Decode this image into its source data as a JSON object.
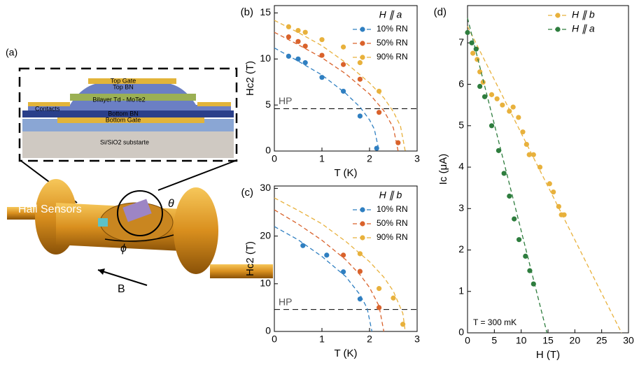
{
  "illustration": {
    "panel": "(a)",
    "top_gate": "Top Gate",
    "top_bn": "Top BN",
    "bilayer": "Bilayer Td - MoTe2",
    "contacts": "Contacts",
    "bottom_bn": "Bottom BN",
    "bottom_gate": "Bottom Gate",
    "substrate": "Si/SiO2 substarte",
    "hall": "Hall Sensors",
    "theta": "θ",
    "phi": "ϕ",
    "field": "B"
  },
  "chart_data": [
    {
      "type": "scatter",
      "panel": "(b)",
      "legend_title": "H ∥ a",
      "xlabel": "T (K)",
      "ylabel": "Hc2 (T)",
      "xlim": [
        0,
        3
      ],
      "ylim": [
        0,
        15.8
      ],
      "xticks": [
        0,
        1,
        2,
        3
      ],
      "yticks": [
        0,
        5,
        10,
        15
      ],
      "legend": "upper right",
      "hline": {
        "value": 4.6,
        "label": "HP"
      },
      "series": [
        {
          "name": "10% RN",
          "color": "#2f7fc1",
          "x": [
            0.3,
            0.5,
            0.65,
            1.0,
            1.45,
            1.8,
            2.15
          ],
          "values": [
            10.3,
            10.0,
            9.6,
            8.0,
            6.5,
            3.8,
            0.3
          ],
          "fit": {
            "x": [
              0,
              0.5,
              1.0,
              1.5,
              1.8,
              2.0,
              2.1,
              2.2
            ],
            "values": [
              11.2,
              9.77,
              8.26,
              6.26,
              4.78,
              3.38,
              2.39,
              0
            ]
          }
        },
        {
          "name": "50% RN",
          "color": "#d9622b",
          "x": [
            0.3,
            0.5,
            0.65,
            1.0,
            1.45,
            1.8,
            2.2,
            2.6
          ],
          "values": [
            12.4,
            11.9,
            11.4,
            10.4,
            9.4,
            7.8,
            4.2,
            0.9
          ],
          "fit": {
            "x": [
              0,
              0.5,
              1.0,
              1.5,
              2.0,
              2.3,
              2.5,
              2.6
            ],
            "values": [
              12.9,
              11.56,
              10.13,
              8.39,
              6.19,
              4.38,
              2.53,
              0
            ]
          }
        },
        {
          "name": "90% RN",
          "color": "#e8b13c",
          "x": [
            0.3,
            0.5,
            0.65,
            1.0,
            1.45,
            1.8,
            2.2
          ],
          "values": [
            13.5,
            13.1,
            12.9,
            12.1,
            11.3,
            9.6,
            6.5
          ],
          "fit": {
            "x": [
              0,
              0.5,
              1.0,
              1.5,
              2.0,
              2.3,
              2.5,
              2.65,
              2.75
            ],
            "values": [
              14.2,
              12.88,
              11.44,
              9.6,
              7.4,
              5.78,
              4.28,
              2.71,
              0
            ]
          }
        }
      ]
    },
    {
      "type": "scatter",
      "panel": "(c)",
      "legend_title": "H ∥ b",
      "xlabel": "T (K)",
      "ylabel": "Hc2 (T)",
      "xlim": [
        0,
        3
      ],
      "ylim": [
        0,
        30.5
      ],
      "xticks": [
        0,
        1,
        2,
        3
      ],
      "yticks": [
        0,
        10,
        20,
        30
      ],
      "legend": "upper right",
      "hline": {
        "value": 4.6,
        "label": "HP"
      },
      "series": [
        {
          "name": "10% RN",
          "color": "#2f7fc1",
          "x": [
            0.6,
            1.1,
            1.45,
            1.8
          ],
          "values": [
            18,
            16,
            12.5,
            6.8
          ],
          "fit": {
            "x": [
              0,
              0.5,
              1.0,
              1.5,
              1.8,
              1.95,
              2.05
            ],
            "values": [
              22,
              19.21,
              15.72,
              11.51,
              7.7,
              4.86,
              0
            ]
          }
        },
        {
          "name": "50% RN",
          "color": "#d9622b",
          "x": [
            1.45,
            1.8,
            2.2
          ],
          "values": [
            16,
            12.6,
            5.0
          ],
          "fit": {
            "x": [
              0,
              0.5,
              1.0,
              1.5,
              1.8,
              2.0,
              2.2,
              2.3
            ],
            "values": [
              25.5,
              22.52,
              19.12,
              15.04,
              11.89,
              9.21,
              5.32,
              0
            ]
          }
        },
        {
          "name": "90% RN",
          "color": "#e8b13c",
          "x": [
            1.8,
            2.2,
            2.5,
            2.7
          ],
          "values": [
            16.3,
            9,
            7,
            1.5
          ],
          "fit": {
            "x": [
              0,
              0.5,
              1.0,
              1.5,
              2.0,
              2.3,
              2.5,
              2.7,
              2.75
            ],
            "values": [
              28,
              25.38,
              22.56,
              18.88,
              14.62,
              11.38,
              8.44,
              3.78,
              0
            ]
          }
        }
      ]
    },
    {
      "type": "scatter",
      "panel": "(d)",
      "xlabel": "H (T)",
      "ylabel": "Ic (μA)",
      "annotation": "T = 300 mK",
      "xlim": [
        0,
        30
      ],
      "ylim": [
        0,
        7.9
      ],
      "xticks": [
        0,
        5,
        10,
        15,
        20,
        25,
        30
      ],
      "yticks": [
        0,
        1,
        2,
        3,
        4,
        5,
        6,
        7
      ],
      "legend": "upper right",
      "series": [
        {
          "name": "H ∥ b",
          "color": "#e8b13c",
          "x": [
            1.0,
            1.8,
            2.3,
            2.9,
            4.5,
            5.5,
            6.5,
            7.8,
            8.5,
            9.5,
            10.3,
            11.0,
            11.5,
            12.3,
            13.5,
            15.3,
            16.0,
            17.0,
            17.5,
            18.0
          ],
          "values": [
            6.75,
            6.6,
            6.3,
            6.05,
            5.75,
            5.65,
            5.5,
            5.35,
            5.45,
            5.2,
            4.85,
            4.55,
            4.3,
            4.3,
            4.0,
            3.6,
            3.4,
            3.05,
            2.85,
            2.85
          ],
          "fit": {
            "x": [
              0,
              28.7
            ],
            "values": [
              7.4,
              0
            ]
          }
        },
        {
          "name": "H ∥ a",
          "color": "#2e7d3e",
          "x": [
            0,
            0.8,
            1.6,
            2.3,
            3.2,
            4.5,
            5.8,
            6.8,
            7.8,
            8.7,
            9.6,
            10.8,
            11.6,
            12.3
          ],
          "values": [
            7.25,
            7.0,
            6.85,
            5.95,
            5.7,
            5.0,
            4.4,
            3.85,
            3.3,
            2.75,
            2.25,
            1.85,
            1.5,
            1.18
          ],
          "fit": {
            "x": [
              0,
              14.8
            ],
            "values": [
              7.6,
              0
            ]
          }
        }
      ]
    }
  ]
}
